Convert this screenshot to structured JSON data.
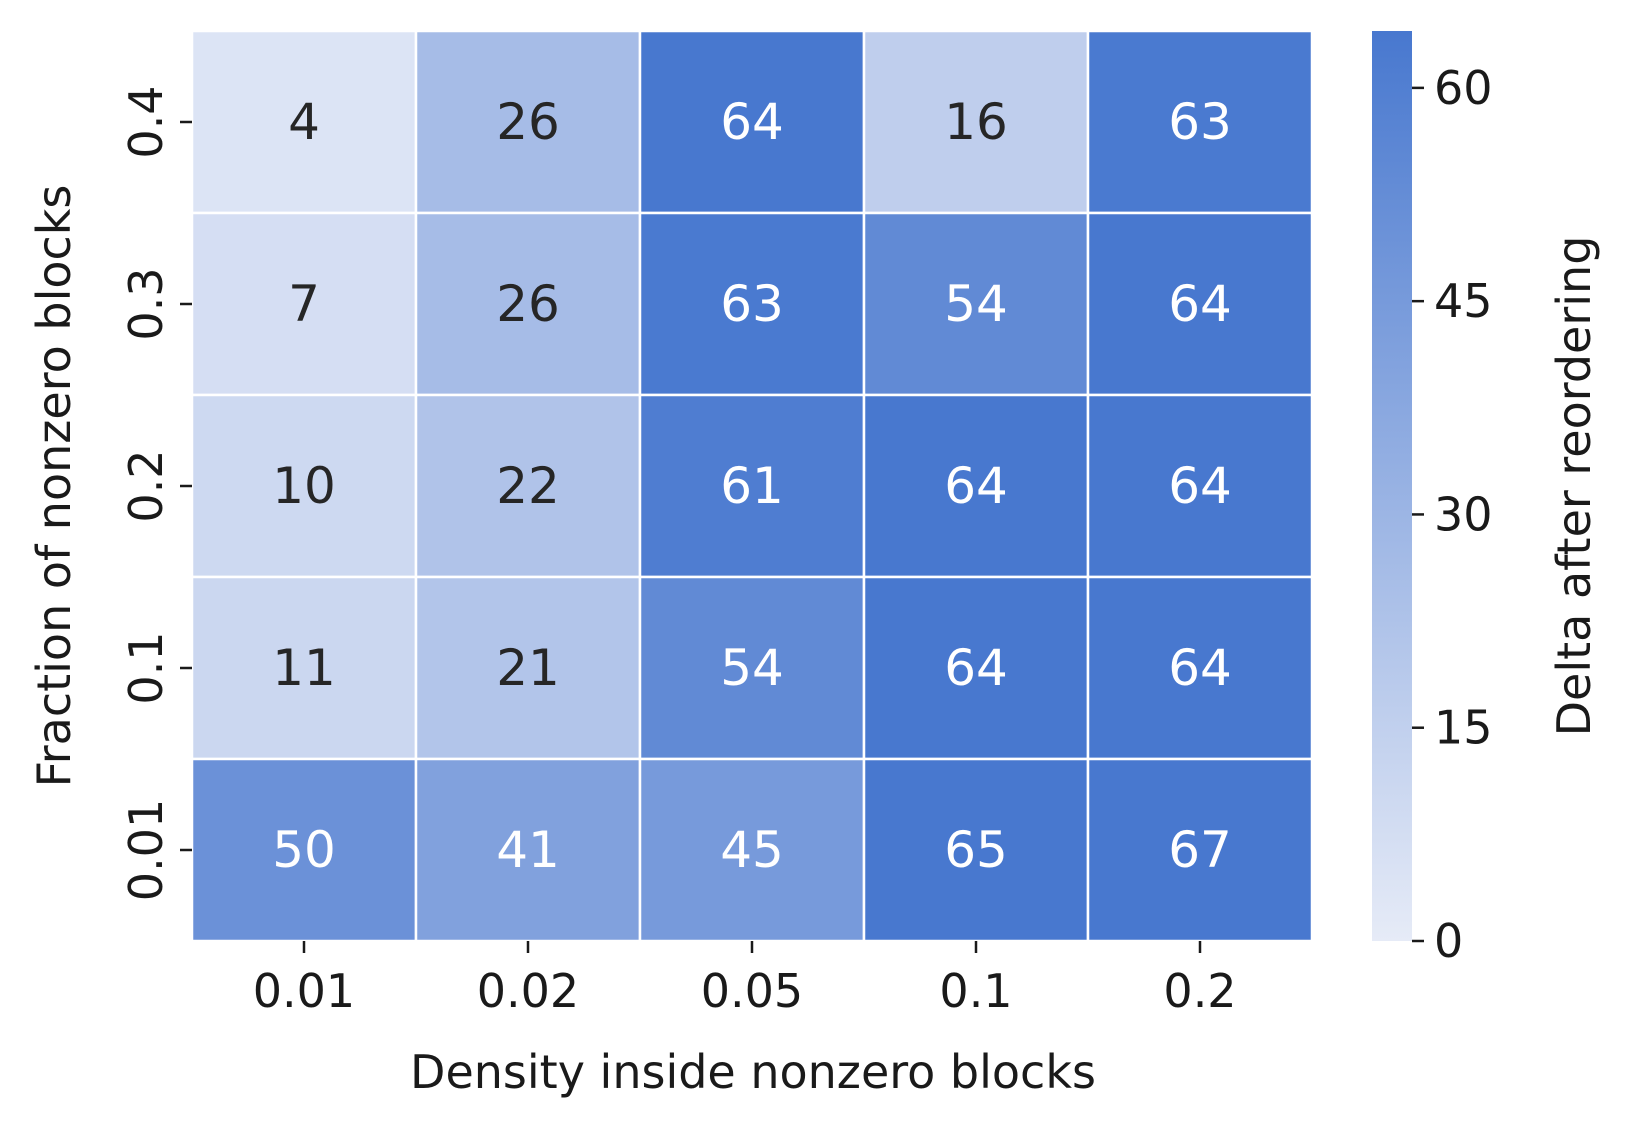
{
  "chart_data": {
    "type": "heatmap",
    "title": "",
    "xlabel": "Density inside nonzero blocks",
    "ylabel": "Fraction of nonzero blocks",
    "x_categories": [
      "0.01",
      "0.02",
      "0.05",
      "0.1",
      "0.2"
    ],
    "y_categories": [
      "0.4",
      "0.3",
      "0.2",
      "0.1",
      "0.01"
    ],
    "values": [
      [
        4,
        26,
        64,
        16,
        63
      ],
      [
        7,
        26,
        63,
        54,
        64
      ],
      [
        10,
        22,
        61,
        64,
        64
      ],
      [
        11,
        21,
        54,
        64,
        64
      ],
      [
        50,
        41,
        45,
        65,
        67
      ]
    ],
    "annotated": true,
    "colorbar": {
      "label": "Delta after reordering",
      "ticks": [
        0,
        15,
        30,
        45,
        60
      ],
      "tick_labels": [
        "0",
        "15",
        "30",
        "45",
        "60"
      ],
      "range": [
        0,
        64
      ],
      "color_low": "#e6ebf7",
      "color_high": "#4878cf"
    },
    "annotation_colors": {
      "light_cells": "#262626",
      "dark_cells": "#ffffff"
    },
    "grid_line_color": "#ffffff"
  }
}
